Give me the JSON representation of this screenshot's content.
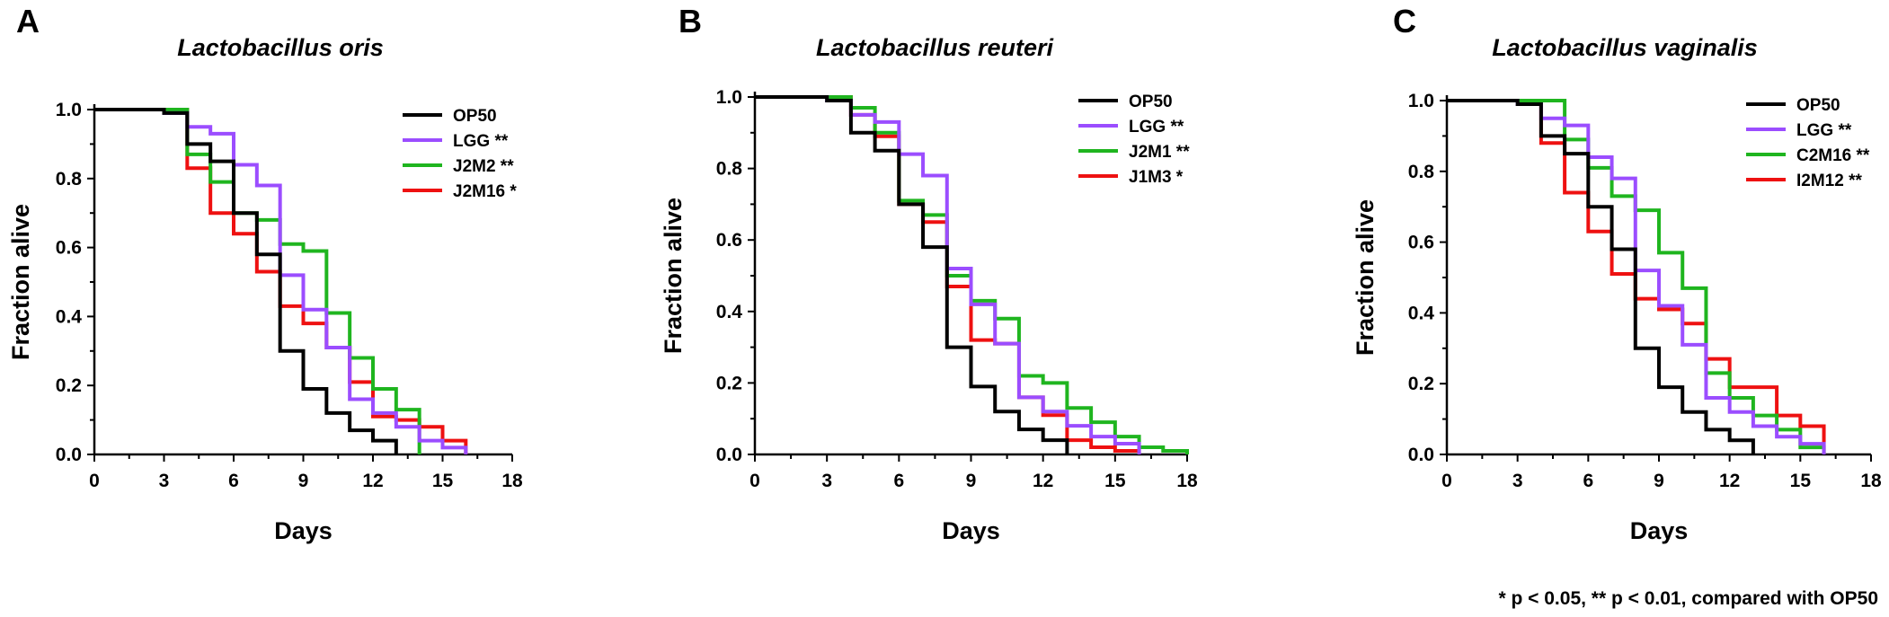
{
  "footnote": "* p < 0.05, ** p < 0.01, compared with OP50",
  "chart_data": [
    {
      "type": "line",
      "panel": "A",
      "title": "Lactobacillus oris",
      "xlabel": "Days",
      "ylabel": "Fraction alive",
      "xlim": [
        0,
        18
      ],
      "ylim": [
        0,
        1.0
      ],
      "xticks": [
        0,
        3,
        6,
        9,
        12,
        15,
        18
      ],
      "yticks": [
        0.0,
        0.2,
        0.4,
        0.6,
        0.8,
        1.0
      ],
      "ytick_labels": [
        "0.0",
        "0.2",
        "0.4",
        "0.6",
        "0.8",
        "1.0"
      ],
      "legend_position": "top-right",
      "series": [
        {
          "name": "OP50",
          "color": "#000000",
          "x": [
            0,
            3,
            4,
            5,
            6,
            7,
            8,
            9,
            10,
            11,
            12,
            13
          ],
          "y": [
            1.0,
            0.99,
            0.9,
            0.85,
            0.7,
            0.58,
            0.3,
            0.19,
            0.12,
            0.07,
            0.04,
            0.0
          ]
        },
        {
          "name": "LGG **",
          "color": "#9b4dff",
          "x": [
            0,
            3,
            4,
            5,
            6,
            7,
            8,
            9,
            10,
            11,
            12,
            13,
            14,
            15,
            16
          ],
          "y": [
            1.0,
            0.99,
            0.95,
            0.93,
            0.84,
            0.78,
            0.52,
            0.42,
            0.31,
            0.16,
            0.12,
            0.08,
            0.04,
            0.02,
            0.0
          ]
        },
        {
          "name": "J2M2 **",
          "color": "#1fb51f",
          "x": [
            0,
            4,
            5,
            6,
            7,
            8,
            9,
            10,
            11,
            12,
            13,
            14
          ],
          "y": [
            1.0,
            0.87,
            0.79,
            0.7,
            0.68,
            0.61,
            0.59,
            0.41,
            0.28,
            0.19,
            0.13,
            0.0
          ]
        },
        {
          "name": "J2M16 *",
          "color": "#ee1111",
          "x": [
            0,
            4,
            5,
            6,
            7,
            8,
            9,
            10,
            11,
            12,
            13,
            14,
            15,
            16
          ],
          "y": [
            1.0,
            0.83,
            0.7,
            0.64,
            0.53,
            0.43,
            0.38,
            0.31,
            0.21,
            0.11,
            0.1,
            0.08,
            0.04,
            0.0
          ]
        }
      ]
    },
    {
      "type": "line",
      "panel": "B",
      "title": "Lactobacillus reuteri",
      "xlabel": "Days",
      "ylabel": "Fraction alive",
      "xlim": [
        0,
        18
      ],
      "ylim": [
        0,
        1.0
      ],
      "xticks": [
        0,
        3,
        6,
        9,
        12,
        15,
        18
      ],
      "yticks": [
        0.0,
        0.2,
        0.4,
        0.6,
        0.8,
        1.0
      ],
      "ytick_labels": [
        "0.0",
        "0.2",
        "0.4",
        "0.6",
        "0.8",
        "1.0"
      ],
      "legend_position": "top-right",
      "series": [
        {
          "name": "OP50",
          "color": "#000000",
          "x": [
            0,
            3,
            4,
            5,
            6,
            7,
            8,
            9,
            10,
            11,
            12,
            13
          ],
          "y": [
            1.0,
            0.99,
            0.9,
            0.85,
            0.7,
            0.58,
            0.3,
            0.19,
            0.12,
            0.07,
            0.04,
            0.0
          ]
        },
        {
          "name": "LGG **",
          "color": "#9b4dff",
          "x": [
            0,
            3,
            4,
            5,
            6,
            7,
            8,
            9,
            10,
            11,
            12,
            13,
            14,
            15,
            16
          ],
          "y": [
            1.0,
            0.99,
            0.95,
            0.93,
            0.84,
            0.78,
            0.52,
            0.42,
            0.31,
            0.16,
            0.12,
            0.08,
            0.05,
            0.03,
            0.0
          ]
        },
        {
          "name": "J2M1 **",
          "color": "#1fb51f",
          "x": [
            0,
            4,
            5,
            6,
            7,
            8,
            9,
            10,
            11,
            12,
            13,
            14,
            15,
            16,
            17,
            18
          ],
          "y": [
            1.0,
            0.97,
            0.9,
            0.71,
            0.67,
            0.5,
            0.43,
            0.38,
            0.22,
            0.2,
            0.13,
            0.09,
            0.05,
            0.02,
            0.01,
            0.0
          ]
        },
        {
          "name": "J1M3 *",
          "color": "#ee1111",
          "x": [
            0,
            4,
            5,
            6,
            7,
            8,
            9,
            10,
            11,
            12,
            13,
            14,
            15,
            16
          ],
          "y": [
            1.0,
            0.95,
            0.89,
            0.7,
            0.65,
            0.47,
            0.32,
            0.31,
            0.16,
            0.11,
            0.04,
            0.02,
            0.01,
            0.0
          ]
        }
      ]
    },
    {
      "type": "line",
      "panel": "C",
      "title": "Lactobacillus vaginalis",
      "xlabel": "Days",
      "ylabel": "Fraction alive",
      "xlim": [
        0,
        18
      ],
      "ylim": [
        0,
        1.0
      ],
      "xticks": [
        0,
        3,
        6,
        9,
        12,
        15,
        18
      ],
      "yticks": [
        0.0,
        0.2,
        0.4,
        0.6,
        0.8,
        1.0
      ],
      "ytick_labels": [
        "0.0",
        "0.2",
        "0.4",
        "0.6",
        "0.8",
        "1.0"
      ],
      "legend_position": "top-right",
      "series": [
        {
          "name": "OP50",
          "color": "#000000",
          "x": [
            0,
            3,
            4,
            5,
            6,
            7,
            8,
            9,
            10,
            11,
            12,
            13
          ],
          "y": [
            1.0,
            0.99,
            0.9,
            0.85,
            0.7,
            0.58,
            0.3,
            0.19,
            0.12,
            0.07,
            0.04,
            0.0
          ]
        },
        {
          "name": "LGG **",
          "color": "#9b4dff",
          "x": [
            0,
            3,
            4,
            5,
            6,
            7,
            8,
            9,
            10,
            11,
            12,
            13,
            14,
            15,
            16
          ],
          "y": [
            1.0,
            0.99,
            0.95,
            0.93,
            0.84,
            0.78,
            0.52,
            0.42,
            0.31,
            0.16,
            0.12,
            0.08,
            0.05,
            0.03,
            0.0
          ]
        },
        {
          "name": "C2M16 **",
          "color": "#1fb51f",
          "x": [
            0,
            5,
            6,
            7,
            8,
            9,
            10,
            11,
            12,
            13,
            14,
            15,
            16
          ],
          "y": [
            1.0,
            0.89,
            0.81,
            0.73,
            0.69,
            0.57,
            0.47,
            0.23,
            0.16,
            0.11,
            0.07,
            0.02,
            0.0
          ]
        },
        {
          "name": "I2M12 **",
          "color": "#ee1111",
          "x": [
            0,
            4,
            5,
            6,
            7,
            8,
            9,
            10,
            11,
            12,
            13,
            14,
            15,
            16
          ],
          "y": [
            1.0,
            0.88,
            0.74,
            0.63,
            0.51,
            0.44,
            0.41,
            0.37,
            0.27,
            0.19,
            0.19,
            0.11,
            0.08,
            0.0
          ]
        }
      ]
    }
  ]
}
